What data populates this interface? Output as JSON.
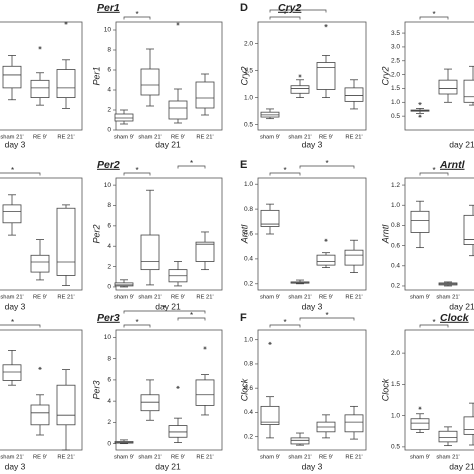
{
  "chart_data": [
    {
      "type": "box",
      "xlabel": "day 3",
      "categories": [
        null,
        "sham 21'",
        "RE 9'",
        "RE 21'"
      ],
      "ylim": [
        0,
        10
      ],
      "boxes": [
        null,
        {
          "min": 2.8,
          "q1": 3.9,
          "median": 5.1,
          "q3": 5.9,
          "max": 6.9
        },
        {
          "min": 2.3,
          "q1": 3.0,
          "median": 3.9,
          "q3": 4.6,
          "max": 5.3,
          "outliers": [
            7.6
          ]
        },
        {
          "min": 2.0,
          "q1": 3.0,
          "median": 3.9,
          "q3": 5.6,
          "max": 6.5,
          "outliers": [
            9.9
          ]
        }
      ],
      "brackets": []
    },
    {
      "type": "box",
      "title": "Per1",
      "ylabel": "Per1",
      "xlabel": "day 21",
      "categories": [
        "sham 9'",
        "sham 21'",
        "RE 9'",
        "RE 21'"
      ],
      "ylim": [
        0,
        10.8
      ],
      "yticks": [
        0,
        2,
        4,
        6,
        8,
        10
      ],
      "boxes": [
        {
          "min": 0.6,
          "q1": 0.9,
          "median": 1.2,
          "q3": 1.6,
          "max": 2.0
        },
        {
          "min": 2.4,
          "q1": 3.5,
          "median": 4.5,
          "q3": 6.1,
          "max": 8.1
        },
        {
          "min": 0.7,
          "q1": 1.1,
          "median": 2.2,
          "q3": 2.9,
          "max": 4.1,
          "outliers": [
            10.6
          ]
        },
        {
          "min": 1.5,
          "q1": 2.2,
          "median": 3.2,
          "q3": 4.8,
          "max": 5.6
        }
      ],
      "brackets": [
        {
          "from": 0,
          "to": 1,
          "label": "*"
        }
      ]
    },
    {
      "type": "box",
      "letter": "D",
      "title": "Cry2",
      "ylabel": "Cry2",
      "xlabel": "day 3",
      "categories": [
        "sham 9'",
        "sham 21'",
        "RE 9'",
        "RE 21'"
      ],
      "ylim": [
        0.4,
        2.4
      ],
      "yticks": [
        0.5,
        {
          "value": 1,
          "label": "1.0"
        },
        1.5,
        {
          "value": 2,
          "label": "2.0"
        }
      ],
      "boxes": [
        {
          "min": 0.61,
          "q1": 0.64,
          "median": 0.68,
          "q3": 0.73,
          "max": 0.79
        },
        {
          "min": 1.0,
          "q1": 1.08,
          "median": 1.17,
          "q3": 1.22,
          "max": 1.33,
          "outliers": [
            1.4
          ]
        },
        {
          "min": 1.0,
          "q1": 1.15,
          "median": 1.56,
          "q3": 1.65,
          "max": 1.78,
          "outliers": [
            2.33
          ]
        },
        {
          "min": 0.79,
          "q1": 0.93,
          "median": 1.04,
          "q3": 1.18,
          "max": 1.33
        }
      ],
      "brackets": [
        {
          "from": 0,
          "to": 1,
          "label": "*"
        },
        {
          "from": 0,
          "to": 2,
          "label": "*"
        }
      ]
    },
    {
      "type": "box",
      "ylabel": "Cry2",
      "xlabel": "day 21",
      "categories": [
        null,
        null,
        null
      ],
      "ylim": [
        0,
        3.9
      ],
      "yticks": [
        0.5,
        {
          "value": 1,
          "label": "1.0"
        },
        1.5,
        {
          "value": 2,
          "label": "2.0"
        },
        2.5,
        {
          "value": 3,
          "label": "3.0"
        },
        3.5
      ],
      "boxes": [
        {
          "min": 0.6,
          "q1": 0.68,
          "median": 0.7,
          "q3": 0.72,
          "max": 0.78,
          "outliers": [
            0.5,
            0.95
          ]
        },
        {
          "min": 1.0,
          "q1": 1.3,
          "median": 1.5,
          "q3": 1.8,
          "max": 2.2
        },
        {
          "min": 0.9,
          "q1": 1.0,
          "median": 1.2,
          "q3": 1.8,
          "max": 2.3
        }
      ],
      "brackets": [
        {
          "from": 0,
          "to": 1,
          "label": "*"
        }
      ]
    },
    {
      "type": "box",
      "xlabel": "day 3",
      "categories": [
        null,
        "sham 21'",
        "RE 9'",
        "RE 21'"
      ],
      "ylim": [
        0,
        10
      ],
      "boxes": [
        null,
        {
          "min": 4.9,
          "q1": 6.0,
          "median": 7.0,
          "q3": 7.6,
          "max": 8.5
        },
        {
          "min": 0.9,
          "q1": 1.6,
          "median": 2.5,
          "q3": 3.1,
          "max": 4.5
        },
        {
          "min": 0.4,
          "q1": 1.3,
          "median": 2.5,
          "q3": 7.3,
          "max": 7.6
        }
      ],
      "brackets": [
        {
          "from": 0,
          "to": 2,
          "label": "*"
        }
      ]
    },
    {
      "type": "box",
      "title": "Per2",
      "ylabel": "Per2",
      "xlabel": "day 21",
      "categories": [
        "sham 9'",
        "sham 21'",
        "RE 9'",
        "RE 21'"
      ],
      "ylim": [
        -0.3,
        10.7
      ],
      "yticks": [
        0,
        2,
        4,
        6,
        8,
        10
      ],
      "boxes": [
        {
          "min": 0.0,
          "q1": 0.1,
          "median": 0.2,
          "q3": 0.4,
          "max": 0.7
        },
        {
          "min": 0.2,
          "q1": 1.7,
          "median": 2.5,
          "q3": 5.1,
          "max": 9.5
        },
        {
          "min": 0.1,
          "q1": 0.5,
          "median": 1.1,
          "q3": 1.7,
          "max": 2.5
        },
        {
          "min": 1.7,
          "q1": 2.5,
          "median": 4.2,
          "q3": 4.4,
          "max": 5.4
        }
      ],
      "brackets": [
        {
          "from": 0,
          "to": 1,
          "label": "*"
        },
        {
          "from": 2,
          "to": 3,
          "label": "*"
        }
      ]
    },
    {
      "type": "box",
      "letter": "E",
      "ylabel": "Arntl",
      "xlabel": "day 3",
      "categories": [
        "sham 9'",
        "sham 21'",
        "RE 9'",
        "RE 21'"
      ],
      "ylim": [
        0.15,
        1.05
      ],
      "yticks": [
        0.2,
        0.4,
        0.6,
        0.8,
        {
          "value": 1,
          "label": "1.0"
        }
      ],
      "boxes": [
        {
          "min": 0.6,
          "q1": 0.66,
          "median": 0.68,
          "q3": 0.79,
          "max": 0.84
        },
        {
          "min": 0.2,
          "q1": 0.205,
          "median": 0.21,
          "q3": 0.215,
          "max": 0.23
        },
        {
          "min": 0.33,
          "q1": 0.35,
          "median": 0.38,
          "q3": 0.43,
          "max": 0.45,
          "outliers": [
            0.55
          ]
        },
        {
          "min": 0.29,
          "q1": 0.35,
          "median": 0.43,
          "q3": 0.47,
          "max": 0.55
        }
      ],
      "brackets": [
        {
          "from": 0,
          "to": 1,
          "label": "*"
        },
        {
          "from": 1,
          "to": 3,
          "label": "*"
        }
      ]
    },
    {
      "type": "box",
      "title": "Arntl",
      "ylabel": "Arntl",
      "xlabel": "day 21",
      "categories": [
        "sham 9'",
        "sham 21'",
        null
      ],
      "ylim": [
        0.16,
        1.27
      ],
      "yticks": [
        0.2,
        0.4,
        0.6,
        0.8,
        {
          "value": 1,
          "label": "1.0"
        },
        1.2
      ],
      "boxes": [
        {
          "min": 0.58,
          "q1": 0.73,
          "median": 0.85,
          "q3": 0.94,
          "max": 1.04
        },
        {
          "min": 0.2,
          "q1": 0.21,
          "median": 0.22,
          "q3": 0.23,
          "max": 0.24
        },
        {
          "min": 0.5,
          "q1": 0.61,
          "median": 0.66,
          "q3": 0.9,
          "max": 1.0
        }
      ],
      "brackets": [
        {
          "from": 0,
          "to": 1,
          "label": "*"
        }
      ]
    },
    {
      "type": "box",
      "xlabel": "day 3",
      "categories": [
        null,
        "sham 21'",
        "RE 9'",
        "RE 21'"
      ],
      "ylim": [
        0,
        10
      ],
      "boxes": [
        null,
        {
          "min": 5.4,
          "q1": 5.8,
          "median": 6.5,
          "q3": 7.1,
          "max": 8.3
        },
        {
          "min": 1.25,
          "q1": 2.1,
          "median": 3.1,
          "q3": 3.75,
          "max": 4.6,
          "outliers": [
            6.8
          ]
        },
        {
          "min": 0,
          "q1": 2.1,
          "median": 2.9,
          "q3": 5.4,
          "max": 6.7
        }
      ],
      "brackets": [
        {
          "from": 0,
          "to": 2,
          "label": "*"
        }
      ]
    },
    {
      "type": "box",
      "title": "Per3",
      "ylabel": "Per3",
      "xlabel": "day 21",
      "categories": [
        "sham 9'",
        "sham 21'",
        "RE 9'",
        "RE 21'"
      ],
      "ylim": [
        -0.6,
        10.7
      ],
      "yticks": [
        0,
        2,
        4,
        6,
        8,
        10
      ],
      "boxes": [
        {
          "min": 0.0,
          "q1": 0.05,
          "median": 0.1,
          "q3": 0.2,
          "max": 0.35
        },
        {
          "min": 2.2,
          "q1": 3.1,
          "median": 3.9,
          "q3": 4.6,
          "max": 6.0
        },
        {
          "min": 0.1,
          "q1": 0.6,
          "median": 1.1,
          "q3": 1.7,
          "max": 2.4,
          "outliers": [
            5.3
          ]
        },
        {
          "min": 2.7,
          "q1": 3.6,
          "median": 4.6,
          "q3": 6.0,
          "max": 6.5,
          "outliers": [
            9.0
          ]
        }
      ],
      "brackets": [
        {
          "from": 0,
          "to": 1,
          "label": "*"
        },
        {
          "from": 2,
          "to": 3,
          "label": "*"
        },
        {
          "from": 0,
          "to": 3,
          "label": "*"
        }
      ]
    },
    {
      "type": "box",
      "letter": "F",
      "ylabel": "Clock",
      "xlabel": "day 3",
      "categories": [
        "sham 9'",
        "sham 21'",
        "RE 9'",
        "RE 21'"
      ],
      "ylim": [
        0.09,
        1.08
      ],
      "yticks": [
        0.2,
        0.4,
        0.6,
        0.8,
        {
          "value": 1,
          "label": "1.0"
        }
      ],
      "boxes": [
        {
          "min": 0.19,
          "q1": 0.3,
          "median": 0.32,
          "q3": 0.45,
          "max": 0.53,
          "outliers": [
            0.97
          ]
        },
        {
          "min": 0.13,
          "q1": 0.14,
          "median": 0.17,
          "q3": 0.19,
          "max": 0.23
        },
        {
          "min": 0.19,
          "q1": 0.24,
          "median": 0.28,
          "q3": 0.32,
          "max": 0.38
        },
        {
          "min": 0.18,
          "q1": 0.24,
          "median": 0.32,
          "q3": 0.38,
          "max": 0.45
        }
      ],
      "brackets": [
        {
          "from": 0,
          "to": 1,
          "label": "*"
        },
        {
          "from": 1,
          "to": 3,
          "label": "*"
        }
      ]
    },
    {
      "type": "box",
      "title": "Clock",
      "ylabel": "Clock",
      "xlabel": "day 21",
      "categories": [
        "sham 9'",
        "sham 21'",
        null
      ],
      "ylim": [
        0.45,
        2.37
      ],
      "yticks": [
        0.5,
        {
          "value": 1,
          "label": "1.0"
        },
        1.5,
        {
          "value": 2,
          "label": "2.0"
        }
      ],
      "boxes": [
        {
          "min": 0.73,
          "q1": 0.78,
          "median": 0.88,
          "q3": 0.95,
          "max": 1.03,
          "outliers": [
            1.12
          ]
        },
        {
          "min": 0.52,
          "q1": 0.58,
          "median": 0.65,
          "q3": 0.75,
          "max": 0.82
        },
        {
          "min": 0.53,
          "q1": 0.7,
          "median": 0.78,
          "q3": 0.98,
          "max": 1.2
        }
      ],
      "brackets": [
        {
          "from": 0,
          "to": 1,
          "label": "*"
        }
      ]
    }
  ]
}
